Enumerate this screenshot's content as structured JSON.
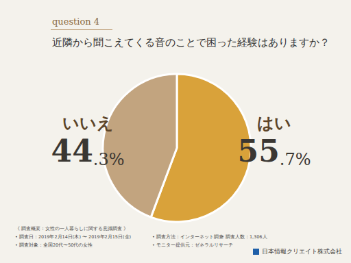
{
  "chart_data": {
    "type": "pie",
    "subtitle": "question 4",
    "title": "近隣から聞こえてくる音のことで困った経験はありますか？",
    "categories": [
      "はい",
      "いいえ"
    ],
    "values": [
      55.7,
      44.3
    ],
    "value_labels": [
      "55.7%",
      "44.3%"
    ],
    "colors": [
      "#d9a23a",
      "#c2a47f"
    ],
    "data_labels": true,
    "annotations": [
      "《 調査概要：女性の一人暮らしに関する意識調査 》",
      "• 調査日：2019年2月14日(木) 〜 2019年2月15日(金)",
      "• 調査方法：インターネット調査",
      "• 調査人数：1,306人",
      "• 調査対象：全国20代〜50代の女性",
      "• モニター提供元：ゼネラルリサーチ"
    ],
    "source": "日本情報クリエイト株式会社"
  }
}
